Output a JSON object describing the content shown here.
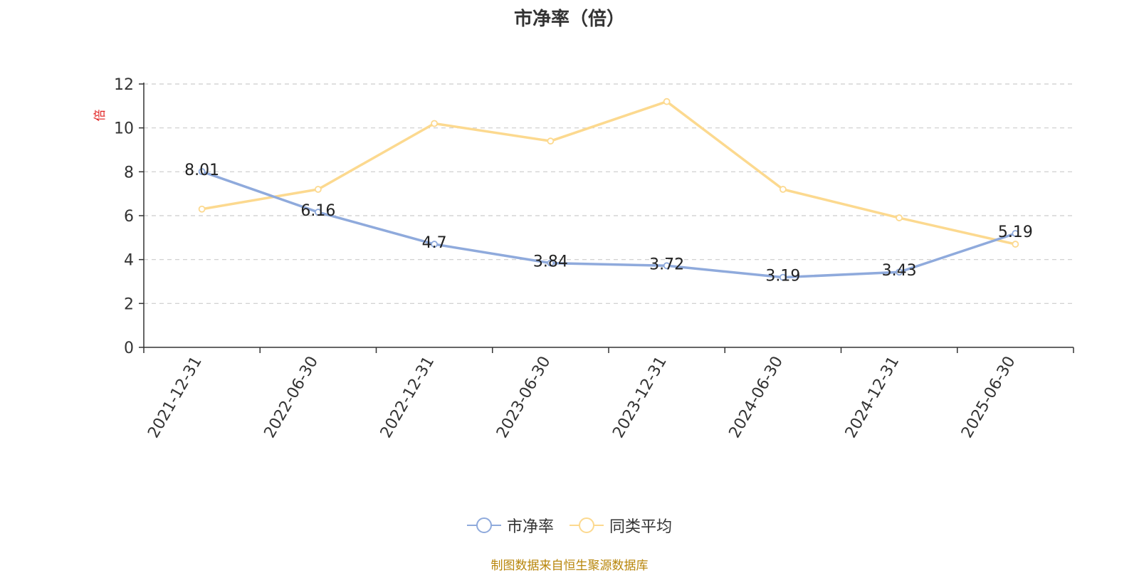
{
  "chart_data": {
    "type": "line",
    "title": "市净率（倍）",
    "ylabel": "倍",
    "xlabel": "",
    "categories": [
      "2021-12-31",
      "2022-06-30",
      "2022-12-31",
      "2023-06-30",
      "2023-12-31",
      "2024-06-30",
      "2024-12-31",
      "2025-06-30"
    ],
    "ylim": [
      0,
      12
    ],
    "yticks": [
      0,
      2,
      4,
      6,
      8,
      10,
      12
    ],
    "grid": true,
    "legend_position": "bottom",
    "series": [
      {
        "name": "市净率",
        "color": "#8faadc",
        "values": [
          8.01,
          6.16,
          4.7,
          3.84,
          3.72,
          3.19,
          3.43,
          5.19
        ],
        "data_labels": [
          "8.01",
          "6.16",
          "4.7",
          "3.84",
          "3.72",
          "3.19",
          "3.43",
          "5.19"
        ]
      },
      {
        "name": "同类平均",
        "color": "#fcd98f",
        "values": [
          6.3,
          7.2,
          10.2,
          9.4,
          11.2,
          7.2,
          5.9,
          4.7
        ]
      }
    ]
  },
  "source_note": "制图数据来自恒生聚源数据库"
}
